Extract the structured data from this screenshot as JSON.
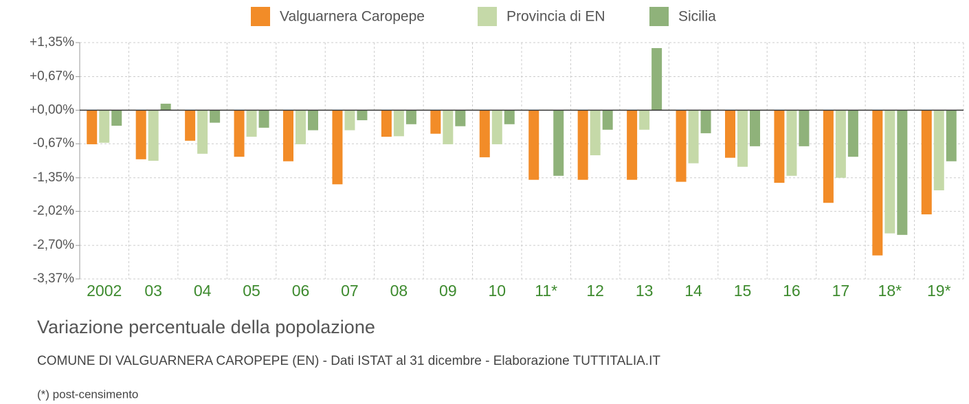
{
  "chart_data": {
    "type": "bar",
    "title": "Variazione percentuale della popolazione",
    "subtitle": "COMUNE DI VALGUARNERA CAROPEPE (EN) - Dati ISTAT al 31 dicembre - Elaborazione TUTTITALIA.IT",
    "note": "(*) post-censimento",
    "categories": [
      "2002",
      "03",
      "04",
      "05",
      "06",
      "07",
      "08",
      "09",
      "10",
      "11*",
      "12",
      "13",
      "14",
      "15",
      "16",
      "17",
      "18*",
      "19*"
    ],
    "series": [
      {
        "name": "Valguarnera Caropepe",
        "color": "#f28c28",
        "values": [
          -0.68,
          -0.98,
          -0.61,
          -0.93,
          -1.02,
          -1.48,
          -0.53,
          -0.47,
          -0.94,
          -1.39,
          -1.39,
          -1.39,
          -1.43,
          -0.95,
          -1.45,
          -1.85,
          -2.9,
          -2.08
        ]
      },
      {
        "name": "Provincia di EN",
        "color": "#c5d9a8",
        "values": [
          -0.65,
          -1.01,
          -0.87,
          -0.53,
          -0.68,
          -0.4,
          -0.52,
          -0.68,
          -0.68,
          0.0,
          -0.9,
          -0.39,
          -1.06,
          -1.13,
          -1.31,
          -1.35,
          -2.46,
          -1.6
        ]
      },
      {
        "name": "Sicilia",
        "color": "#8fb27a",
        "values": [
          -0.31,
          0.13,
          -0.25,
          -0.35,
          -0.4,
          -0.2,
          -0.28,
          -0.32,
          -0.28,
          -1.31,
          -0.39,
          1.24,
          -0.46,
          -0.72,
          -0.72,
          -0.93,
          -2.49,
          -1.02
        ]
      }
    ],
    "ylim": [
      -3.37,
      1.35
    ],
    "yticks": [
      {
        "value": 1.35,
        "label": "+1,35%"
      },
      {
        "value": 0.67,
        "label": "+0,67%"
      },
      {
        "value": 0,
        "label": "+0,00%"
      },
      {
        "value": -0.67,
        "label": "-0,67%"
      },
      {
        "value": -1.35,
        "label": "-1,35%"
      },
      {
        "value": -2.02,
        "label": "-2,02%"
      },
      {
        "value": -2.7,
        "label": "-2,70%"
      },
      {
        "value": -3.37,
        "label": "-3,37%"
      }
    ],
    "grid": true
  }
}
